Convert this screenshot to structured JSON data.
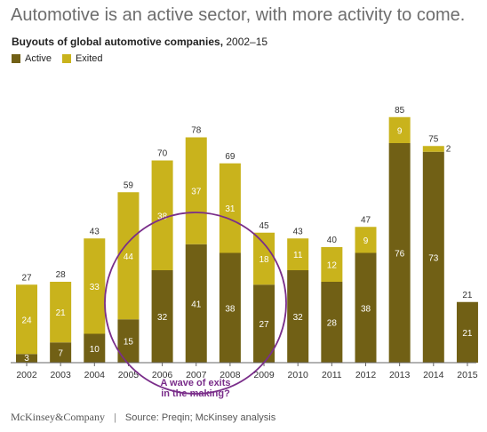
{
  "header": {
    "headline": "Automotive is an active sector, with more activity to come.",
    "subtitle_bold": "Buyouts of global automotive companies,",
    "subtitle_rest": " 2002–15"
  },
  "footer": {
    "brand": "McKinsey&Company",
    "separator": "|",
    "source": "Source: Preqin; McKinsey analysis"
  },
  "annotation": {
    "line1": "A wave of exits",
    "line2": "in the making?"
  },
  "colors": {
    "active": "#716015",
    "exited": "#c9b31c",
    "annotation": "#7a2e8a",
    "axis": "#666666"
  },
  "chart_data": {
    "type": "bar",
    "stacked": true,
    "categories": [
      "2002",
      "2003",
      "2004",
      "2005",
      "2006",
      "2007",
      "2008",
      "2009",
      "2010",
      "2011",
      "2012",
      "2013",
      "2014",
      "2015"
    ],
    "series": [
      {
        "name": "Active",
        "values": [
          3,
          7,
          10,
          15,
          32,
          41,
          38,
          27,
          32,
          28,
          38,
          76,
          73,
          21
        ]
      },
      {
        "name": "Exited",
        "values": [
          24,
          21,
          33,
          44,
          38,
          37,
          31,
          18,
          11,
          12,
          9,
          9,
          2,
          null
        ]
      }
    ],
    "totals": [
      27,
      28,
      43,
      59,
      70,
      78,
      69,
      45,
      43,
      40,
      47,
      85,
      75,
      21
    ],
    "ylim": [
      0,
      85
    ],
    "legend": "top-left",
    "grid": false
  }
}
